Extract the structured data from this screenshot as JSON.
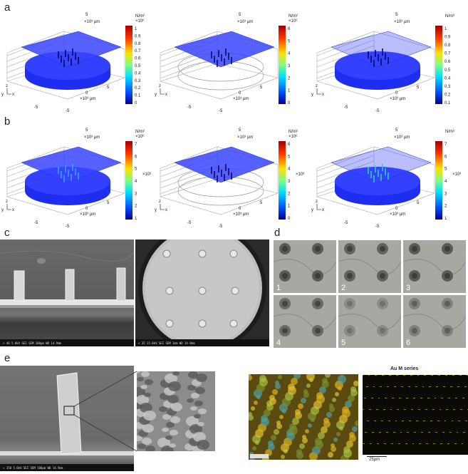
{
  "panels": {
    "a": "a",
    "b": "b",
    "c": "c",
    "d": "d",
    "e": "e"
  },
  "sims": {
    "axis_unit": "×10³ μm",
    "colorbar_unit": "N/m²",
    "tick_5": "5",
    "tick_0": "0",
    "tick_neg5": "-5",
    "axes_glyph_y": "y",
    "axes_glyph_z": "z",
    "axes_glyph_x": "x",
    "row_a": [
      {
        "exp": "×10⁶",
        "ticks": [
          "1",
          "0.9",
          "0.8",
          "0.7",
          "0.6",
          "0.5",
          "0.4",
          "0.3",
          "0.2",
          "0.1",
          "0"
        ]
      },
      {
        "exp": "×10⁶",
        "ticks": [
          "6",
          "5",
          "4",
          "3",
          "2",
          "1",
          "0"
        ]
      },
      {
        "exp": "",
        "ticks": [
          "1",
          "0.9",
          "0.8",
          "0.7",
          "0.6",
          "0.5",
          "0.4",
          "0.3",
          "0.2",
          "0.1"
        ]
      }
    ],
    "row_b": [
      {
        "exp": "×10⁶",
        "ticks": [
          "7",
          "6",
          "5",
          "4",
          "3",
          "2",
          "1"
        ],
        "side": "×10³"
      },
      {
        "exp": "×10⁶",
        "ticks": [
          "6",
          "5",
          "4",
          "3",
          "2",
          "1",
          "0"
        ],
        "side": "×10³"
      },
      {
        "exp": "",
        "ticks": [
          "7",
          "6",
          "5",
          "4",
          "3",
          "2",
          "1"
        ],
        "side": "×10³"
      }
    ]
  },
  "panel_d": {
    "labels": [
      "1",
      "2",
      "3",
      "4",
      "5",
      "6"
    ]
  },
  "panel_c": {
    "sem1": "× 40    5.0kV SEI    SEM    100μm  WD 14.9mm",
    "sem2": "× 35    15.0kV SEI    SEM    1mm  WD 14.9mm"
  },
  "panel_e": {
    "sem": "× 150    5.0kV SEI    SEM    100μm  WD 14.9mm",
    "map_title": "Au M series",
    "scale": "25μm"
  }
}
